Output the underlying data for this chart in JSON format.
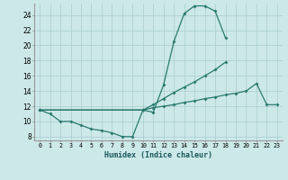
{
  "xlabel": "Humidex (Indice chaleur)",
  "background_color": "#cce8e8",
  "grid_color": "#aacccc",
  "line_color": "#2a7a6e",
  "xlim": [
    -0.5,
    23.5
  ],
  "ylim": [
    7.5,
    25.5
  ],
  "xticks": [
    0,
    1,
    2,
    3,
    4,
    5,
    6,
    7,
    8,
    9,
    10,
    11,
    12,
    13,
    14,
    15,
    16,
    17,
    18,
    19,
    20,
    21,
    22,
    23
  ],
  "yticks": [
    8,
    10,
    12,
    14,
    16,
    18,
    20,
    22,
    24
  ],
  "curve1_x": [
    0,
    1,
    2,
    3,
    4,
    5,
    6,
    7,
    8,
    9,
    10,
    11,
    12,
    13,
    14,
    15,
    16,
    17,
    18,
    19
  ],
  "curve1_y": [
    11.5,
    11.0,
    10.0,
    10.0,
    9.5,
    9.0,
    8.8,
    8.5,
    8.0,
    8.0,
    11.5,
    11.2,
    14.8,
    20.5,
    24.2,
    25.2,
    25.2,
    24.5,
    21.0,
    null
  ],
  "curve2_x": [
    0,
    10,
    11,
    12,
    13,
    14,
    15,
    16,
    17,
    18,
    19,
    20,
    21,
    22,
    23
  ],
  "curve2_y": [
    11.5,
    11.5,
    12.2,
    13.0,
    13.8,
    14.5,
    15.2,
    16.0,
    16.8,
    17.8,
    null,
    null,
    null,
    null,
    null
  ],
  "curve2_xv": [
    0,
    10,
    11,
    12,
    13,
    14,
    15,
    16,
    17,
    18
  ],
  "curve2_yv": [
    11.5,
    11.5,
    12.2,
    13.0,
    13.8,
    14.5,
    15.2,
    16.0,
    16.8,
    17.8
  ],
  "curve3_x": [
    0,
    10,
    11,
    12,
    13,
    14,
    15,
    16,
    17,
    18,
    19,
    20,
    21,
    22,
    23
  ],
  "curve3_y": [
    11.5,
    11.5,
    11.8,
    12.0,
    12.2,
    12.5,
    12.7,
    13.0,
    13.2,
    13.5,
    13.7,
    14.0,
    15.0,
    12.2,
    12.2
  ]
}
